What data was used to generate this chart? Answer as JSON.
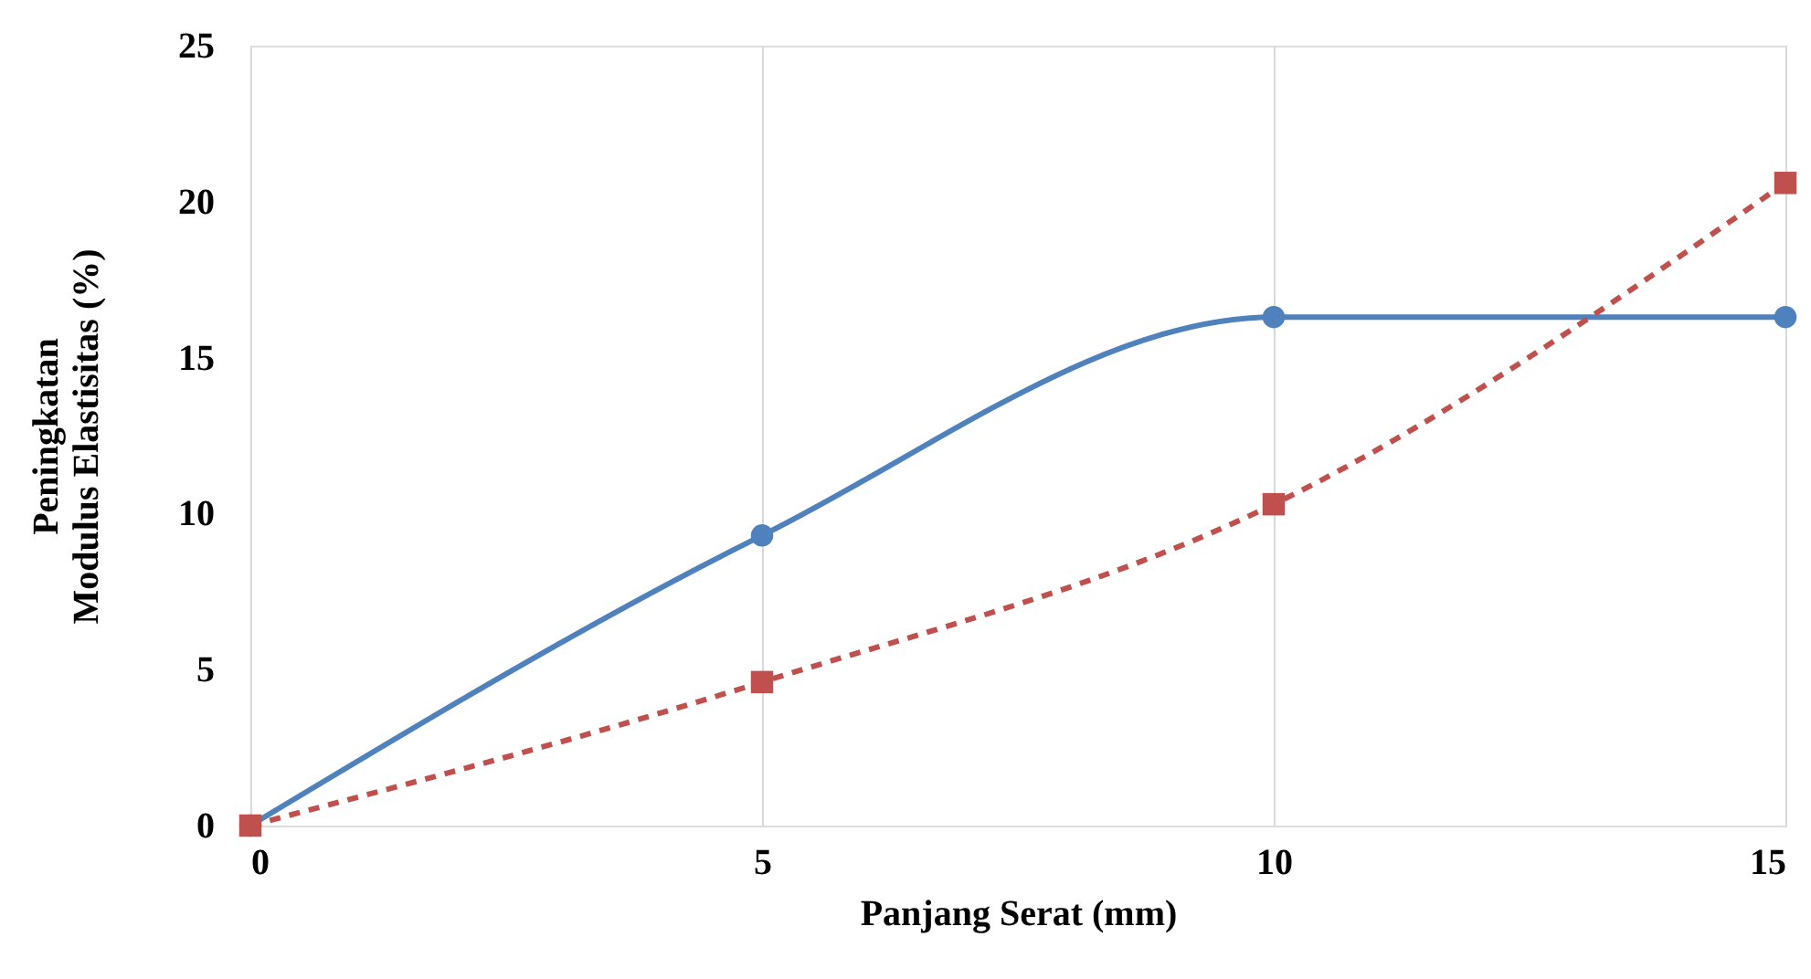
{
  "chart_data": {
    "type": "line",
    "xlabel": "Panjang Serat (mm)",
    "ylabel": "Peningkatan\nModulus Elastisitas (%)",
    "x": [
      0,
      5,
      10,
      15
    ],
    "series": [
      {
        "color": "#4f81bd",
        "values": [
          0,
          9.3,
          16.3,
          16.3
        ],
        "marker": "circle",
        "line_style": "solid"
      },
      {
        "color": "#c0504d",
        "values": [
          0,
          4.6,
          10.3,
          20.6
        ],
        "marker": "square",
        "line_style": "dashed"
      }
    ],
    "xlim": [
      0,
      15
    ],
    "xticks": [
      0,
      5,
      10,
      15
    ],
    "ylim": [
      0,
      25
    ],
    "yticks": [
      0,
      5,
      10,
      15,
      20,
      25
    ],
    "grid": "x"
  }
}
